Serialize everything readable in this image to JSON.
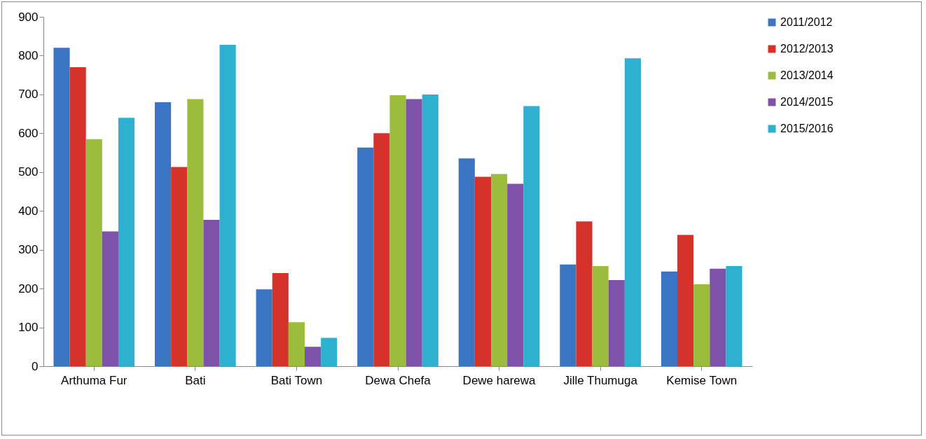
{
  "chart_data": {
    "type": "bar",
    "categories": [
      "Arthuma Fur",
      "Bati",
      "Bati Town",
      "Dewa Chefa",
      "Dewe harewa",
      "Jille Thumuga",
      "Kemise Town"
    ],
    "series": [
      {
        "name": "2011/2012",
        "color": "#3b74c2",
        "values": [
          820,
          680,
          198,
          563,
          535,
          262,
          244
        ]
      },
      {
        "name": "2012/2013",
        "color": "#d5322c",
        "values": [
          770,
          513,
          240,
          600,
          488,
          373,
          338
        ]
      },
      {
        "name": "2013/2014",
        "color": "#9bbd3b",
        "values": [
          585,
          688,
          113,
          698,
          495,
          258,
          211
        ]
      },
      {
        "name": "2014/2015",
        "color": "#7d52a8",
        "values": [
          347,
          377,
          50,
          688,
          470,
          222,
          251
        ]
      },
      {
        "name": "2015/2016",
        "color": "#2eb0d0",
        "values": [
          640,
          828,
          73,
          700,
          670,
          793,
          258
        ]
      }
    ],
    "ylim": [
      0,
      900
    ],
    "yticks": [
      0,
      100,
      200,
      300,
      400,
      500,
      600,
      700,
      800,
      900
    ],
    "grid": false,
    "legend": "right"
  }
}
